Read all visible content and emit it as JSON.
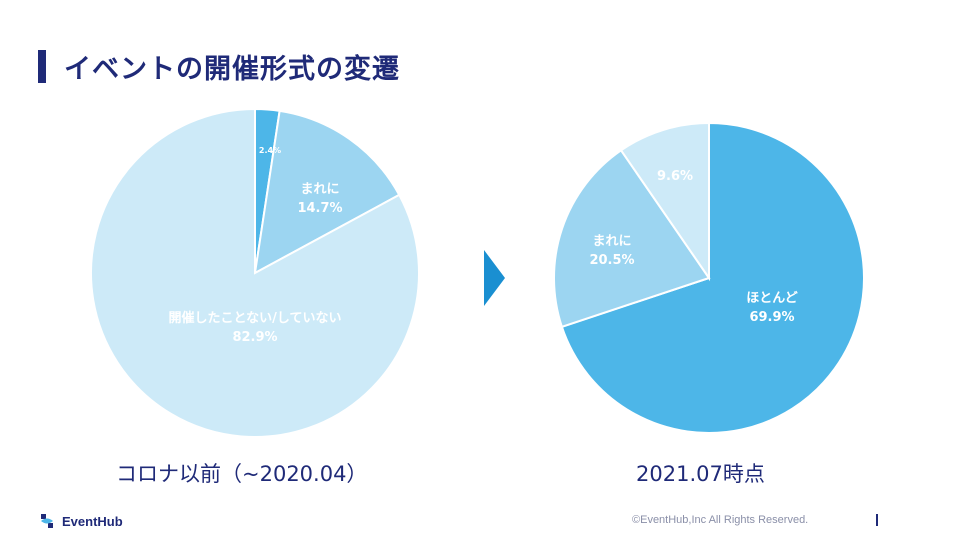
{
  "header": {
    "title": "イベントの開催形式の変遷"
  },
  "colors": {
    "dark": "#4db6e8",
    "mid": "#9cd5f1",
    "light": "#cdeaf8",
    "navy": "#1f2a78",
    "arrow": "#1a8fd1"
  },
  "chart_data": [
    {
      "type": "pie",
      "caption": "コロナ以前（~2020.04）",
      "slices": [
        {
          "label": "",
          "value_text": "2.4%",
          "value": 2.4,
          "color": "#4db6e8"
        },
        {
          "label": "まれに",
          "value_text": "14.7%",
          "value": 14.7,
          "color": "#9cd5f1"
        },
        {
          "label": "開催したことない/していない",
          "value_text": "82.9%",
          "value": 82.9,
          "color": "#cdeaf8"
        }
      ]
    },
    {
      "type": "pie",
      "caption": "2021.07時点",
      "slices": [
        {
          "label": "ほとんど",
          "value_text": "69.9%",
          "value": 69.9,
          "color": "#4db6e8"
        },
        {
          "label": "まれに",
          "value_text": "20.5%",
          "value": 20.5,
          "color": "#9cd5f1"
        },
        {
          "label": "",
          "value_text": "9.6%",
          "value": 9.6,
          "color": "#cdeaf8"
        }
      ]
    }
  ],
  "footer": {
    "brand": "EventHub",
    "copyright": "©EventHub,Inc All Rights Reserved."
  }
}
